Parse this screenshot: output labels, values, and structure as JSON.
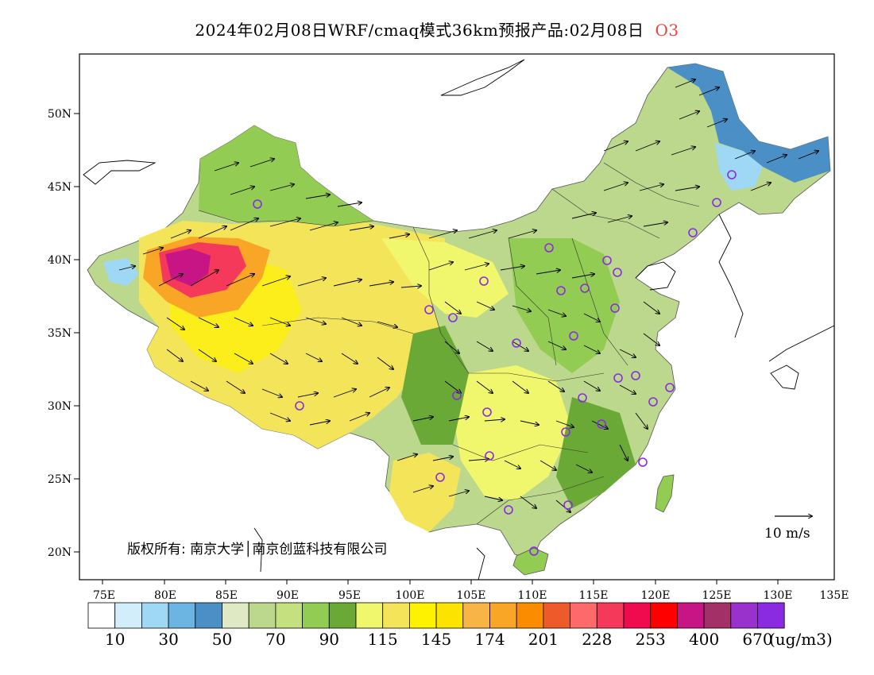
{
  "title": {
    "main": "2024年02月08日WRF/cmaq模式36km预报产品:02月08日",
    "species": "O3"
  },
  "axes": {
    "lat_labels": [
      "50N",
      "45N",
      "40N",
      "35N",
      "30N",
      "25N",
      "20N"
    ],
    "lon_labels": [
      "75E",
      "80E",
      "85E",
      "90E",
      "95E",
      "100E",
      "105E",
      "110E",
      "115E",
      "120E",
      "125E",
      "130E",
      "135E"
    ]
  },
  "wind_reference": {
    "label": "10 m/s"
  },
  "copyright": {
    "text": "版权所有: 南京大学│南京创蓝科技有限公司"
  },
  "colorbar": {
    "colors": [
      "#ffffff",
      "#d2eefb",
      "#9fd8f4",
      "#6cb4e2",
      "#4a8fc6",
      "#dfe9c3",
      "#bcd88c",
      "#c5e07f",
      "#93cc52",
      "#6aa936",
      "#f1f76c",
      "#f4e45a",
      "#fff200",
      "#fde400",
      "#f8b545",
      "#f9a526",
      "#fb8c00",
      "#ef5a2a",
      "#fd6a6a",
      "#f5395a",
      "#f00b4f",
      "#fe0000",
      "#c71585",
      "#a33066",
      "#9932cc",
      "#8a2be2"
    ],
    "labels": [
      "10",
      "30",
      "50",
      "70",
      "90",
      "115",
      "145",
      "174",
      "201",
      "228",
      "253",
      "400",
      "670"
    ],
    "unit": "(ug/m3)"
  },
  "stations": {
    "count": 38
  }
}
